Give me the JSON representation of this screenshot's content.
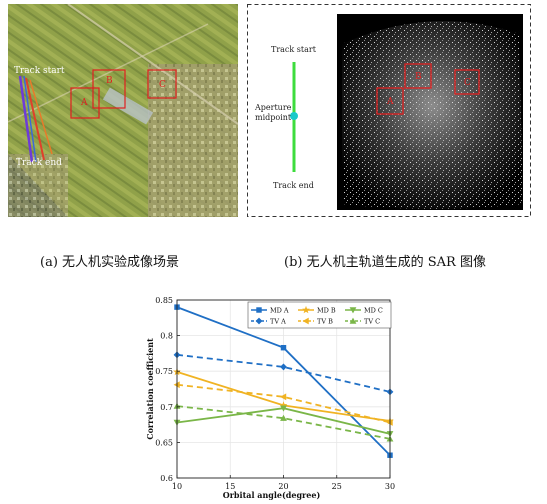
{
  "panel_a": {
    "caption": "(a)  无人机实验成像场景",
    "labels": {
      "track_start": "Track start",
      "track_end": "Track end",
      "region_a": "A",
      "region_b": "B",
      "region_c": "C"
    }
  },
  "panel_b": {
    "caption": "(b)  无人机主轨道生成的 SAR 图像",
    "labels": {
      "track_start": "Track start",
      "aperture": "Aperture",
      "midpoint": "midpoint",
      "track_end": "Track end",
      "region_a": "A",
      "region_b": "B",
      "region_c": "C"
    }
  },
  "chart_data": {
    "type": "line",
    "xlabel": "Orbital angle(degree)",
    "ylabel": "Correlation coefficient",
    "xlim": [
      10,
      30
    ],
    "ylim": [
      0.6,
      0.85
    ],
    "xticks": [
      "10",
      "15",
      "20",
      "25",
      "30"
    ],
    "yticks": [
      "0.6",
      "0.65",
      "0.7",
      "0.75",
      "0.8",
      "0.85"
    ],
    "legend_position": "top-right",
    "x": [
      10,
      20,
      30
    ],
    "series": [
      {
        "name": "MD A",
        "values": [
          0.84,
          0.783,
          0.632
        ],
        "color": "#1f6fc5",
        "dash": false,
        "marker": "square"
      },
      {
        "name": "MD B",
        "values": [
          0.749,
          0.702,
          0.68
        ],
        "color": "#f0b323",
        "dash": false,
        "marker": "star"
      },
      {
        "name": "MD C",
        "values": [
          0.678,
          0.698,
          0.662
        ],
        "color": "#7ab648",
        "dash": false,
        "marker": "triangle-down"
      },
      {
        "name": "TV A",
        "values": [
          0.773,
          0.756,
          0.721
        ],
        "color": "#1f6fc5",
        "dash": true,
        "marker": "diamond"
      },
      {
        "name": "TV B",
        "values": [
          0.731,
          0.714,
          0.678
        ],
        "color": "#f0b323",
        "dash": true,
        "marker": "triangle-left"
      },
      {
        "name": "TV C",
        "values": [
          0.701,
          0.684,
          0.655
        ],
        "color": "#7ab648",
        "dash": true,
        "marker": "triangle-up"
      }
    ]
  }
}
